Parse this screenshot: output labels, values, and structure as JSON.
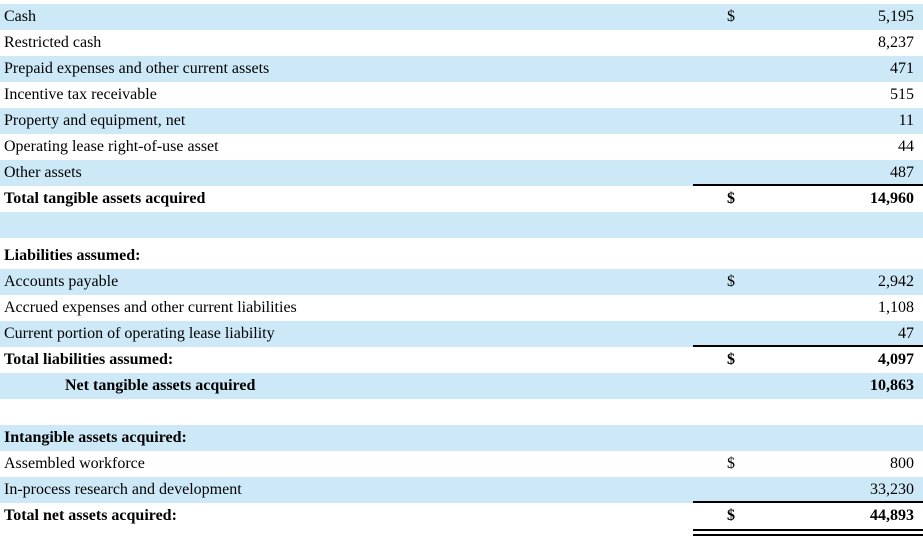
{
  "table": {
    "rows": [
      {
        "label": "Cash",
        "currency": "$",
        "amount": "5,195"
      },
      {
        "label": "Restricted cash",
        "currency": "",
        "amount": "8,237"
      },
      {
        "label": "Prepaid expenses and other current assets",
        "currency": "",
        "amount": "471"
      },
      {
        "label": "Incentive tax receivable",
        "currency": "",
        "amount": "515"
      },
      {
        "label": "Property and equipment, net",
        "currency": "",
        "amount": "11"
      },
      {
        "label": "Operating lease right-of-use asset",
        "currency": "",
        "amount": "44"
      },
      {
        "label": "Other assets",
        "currency": "",
        "amount": "487"
      },
      {
        "label": "Total tangible assets acquired",
        "currency": "$",
        "amount": "14,960"
      },
      {
        "label": "",
        "currency": "",
        "amount": ""
      },
      {
        "label": "Liabilities assumed:",
        "currency": "",
        "amount": ""
      },
      {
        "label": "Accounts payable",
        "currency": "$",
        "amount": "2,942"
      },
      {
        "label": "Accrued expenses and other current liabilities",
        "currency": "",
        "amount": "1,108"
      },
      {
        "label": "Current portion of operating lease liability",
        "currency": "",
        "amount": "47"
      },
      {
        "label": "Total liabilities assumed:",
        "currency": "$",
        "amount": "4,097"
      },
      {
        "label": "Net tangible assets acquired",
        "currency": "",
        "amount": "10,863"
      },
      {
        "label": "",
        "currency": "",
        "amount": ""
      },
      {
        "label": "Intangible assets acquired:",
        "currency": "",
        "amount": ""
      },
      {
        "label": "Assembled workforce",
        "currency": "$",
        "amount": "800"
      },
      {
        "label": "In-process research and development",
        "currency": "",
        "amount": "33,230"
      },
      {
        "label": "Total net assets acquired:",
        "currency": "$",
        "amount": "44,893"
      }
    ],
    "colors": {
      "row_shade": "#cde9f7",
      "rule": "#000000",
      "text": "#000000"
    }
  }
}
